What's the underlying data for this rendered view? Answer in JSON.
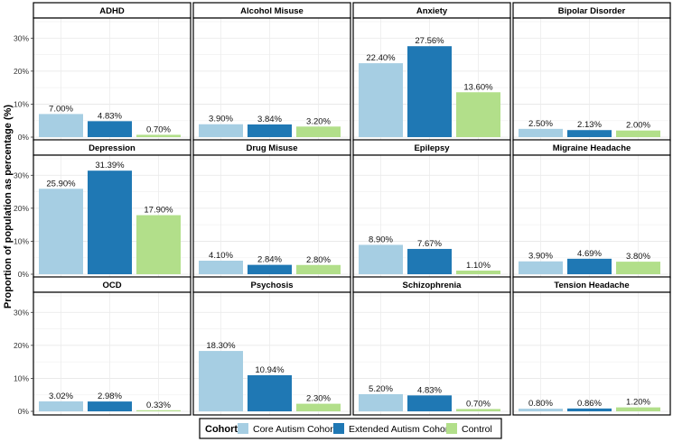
{
  "chart_data": {
    "type": "bar",
    "ylabel": "Proportion of population as percentage (%)",
    "xlabel": "",
    "ylim": [
      0,
      35
    ],
    "yticks": [
      0,
      10,
      20,
      30
    ],
    "ytick_labels": [
      "0%",
      "10%",
      "20%",
      "30%"
    ],
    "grid": true,
    "legend_position": "bottom",
    "legend_title": "Cohort",
    "series": [
      {
        "name": "Core Autism Cohort",
        "color": "#a6cee3"
      },
      {
        "name": "Extended Autism Cohort",
        "color": "#1f78b4"
      },
      {
        "name": "Control",
        "color": "#b2df8a"
      }
    ],
    "panels": [
      {
        "title": "ADHD",
        "values": [
          7.0,
          4.83,
          0.7
        ],
        "labels": [
          "7.00%",
          "4.83%",
          "0.70%"
        ]
      },
      {
        "title": "Alcohol Misuse",
        "values": [
          3.9,
          3.84,
          3.2
        ],
        "labels": [
          "3.90%",
          "3.84%",
          "3.20%"
        ]
      },
      {
        "title": "Anxiety",
        "values": [
          22.4,
          27.56,
          13.6
        ],
        "labels": [
          "22.40%",
          "27.56%",
          "13.60%"
        ]
      },
      {
        "title": "Bipolar Disorder",
        "values": [
          2.5,
          2.13,
          2.0
        ],
        "labels": [
          "2.50%",
          "2.13%",
          "2.00%"
        ]
      },
      {
        "title": "Depression",
        "values": [
          25.9,
          31.39,
          17.9
        ],
        "labels": [
          "25.90%",
          "31.39%",
          "17.90%"
        ]
      },
      {
        "title": "Drug Misuse",
        "values": [
          4.1,
          2.84,
          2.8
        ],
        "labels": [
          "4.10%",
          "2.84%",
          "2.80%"
        ]
      },
      {
        "title": "Epilepsy",
        "values": [
          8.9,
          7.67,
          1.1
        ],
        "labels": [
          "8.90%",
          "7.67%",
          "1.10%"
        ]
      },
      {
        "title": "Migraine Headache",
        "values": [
          3.9,
          4.69,
          3.8
        ],
        "labels": [
          "3.90%",
          "4.69%",
          "3.80%"
        ]
      },
      {
        "title": "OCD",
        "values": [
          3.02,
          2.98,
          0.33
        ],
        "labels": [
          "3.02%",
          "2.98%",
          "0.33%"
        ]
      },
      {
        "title": "Psychosis",
        "values": [
          18.3,
          10.94,
          2.3
        ],
        "labels": [
          "18.30%",
          "10.94%",
          "2.30%"
        ]
      },
      {
        "title": "Schizophrenia",
        "values": [
          5.2,
          4.83,
          0.7
        ],
        "labels": [
          "5.20%",
          "4.83%",
          "0.70%"
        ]
      },
      {
        "title": "Tension Headache",
        "values": [
          0.8,
          0.86,
          1.2
        ],
        "labels": [
          "0.80%",
          "0.86%",
          "1.20%"
        ]
      }
    ]
  }
}
